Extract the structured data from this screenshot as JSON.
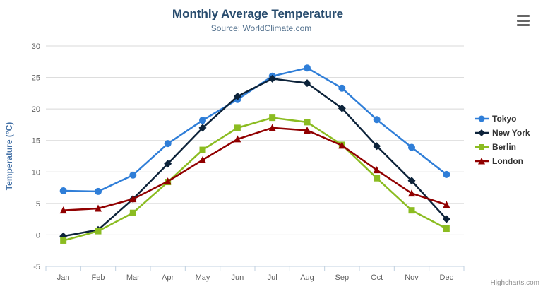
{
  "chart_data": {
    "type": "line",
    "title": "Monthly Average Temperature",
    "subtitle": "Source: WorldClimate.com",
    "categories": [
      "Jan",
      "Feb",
      "Mar",
      "Apr",
      "May",
      "Jun",
      "Jul",
      "Aug",
      "Sep",
      "Oct",
      "Nov",
      "Dec"
    ],
    "xlabel": "",
    "ylabel": "Temperature (°C)",
    "ylim": [
      -5,
      30
    ],
    "ytick_step": 5,
    "ytick_labels": [
      "-5",
      "0",
      "5",
      "10",
      "15",
      "20",
      "25",
      "30"
    ],
    "grid": true,
    "legend_position": "right",
    "series": [
      {
        "name": "Tokyo",
        "color": "#2f7ed8",
        "marker": "circle",
        "values": [
          7.0,
          6.9,
          9.5,
          14.5,
          18.2,
          21.5,
          25.2,
          26.5,
          23.3,
          18.3,
          13.9,
          9.6
        ]
      },
      {
        "name": "New York",
        "color": "#0d233a",
        "marker": "diamond",
        "values": [
          -0.2,
          0.8,
          5.7,
          11.3,
          17.0,
          22.0,
          24.8,
          24.1,
          20.1,
          14.1,
          8.6,
          2.5
        ]
      },
      {
        "name": "Berlin",
        "color": "#8bbc21",
        "marker": "square",
        "values": [
          -0.9,
          0.6,
          3.5,
          8.4,
          13.5,
          17.0,
          18.6,
          17.9,
          14.3,
          9.0,
          3.9,
          1.0
        ]
      },
      {
        "name": "London",
        "color": "#910000",
        "marker": "triangle",
        "values": [
          3.9,
          4.2,
          5.7,
          8.5,
          11.9,
          15.2,
          17.0,
          16.6,
          14.2,
          10.3,
          6.6,
          4.8
        ]
      }
    ]
  },
  "ui": {
    "credit": "Highcharts.com",
    "menu_icon": "hamburger-icon",
    "colors": {
      "title": "#274b6d",
      "subtitle": "#53718e",
      "axis_title": "#4572a7",
      "tick_label": "#606060",
      "grid_line": "#d8d8d8",
      "axis_line": "#c0d0e0",
      "legend_text": "#333333",
      "credit_text": "#909090"
    }
  }
}
